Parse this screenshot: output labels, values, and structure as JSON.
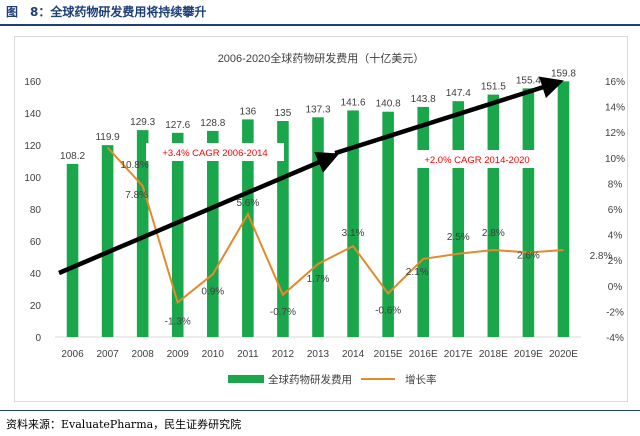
{
  "figure_title": "图　8：全球药物研发费用将持续攀升",
  "source": "资料来源：EvaluatePharma，民生证券研究院",
  "colors": {
    "bar": "#1aa64b",
    "line": "#e38a2b",
    "arrow": "#000000",
    "annotation_text": "#ff0000",
    "header": "#1f3f7a"
  },
  "chart_data": {
    "type": "bar",
    "title": "2006-2020全球药物研发费用（十亿美元）",
    "categories": [
      "2006",
      "2007",
      "2008",
      "2009",
      "2010",
      "2011",
      "2012",
      "2013",
      "2014",
      "2015E",
      "2016E",
      "2017E",
      "2018E",
      "2019E",
      "2020E"
    ],
    "series": [
      {
        "name": "全球药物研发费用",
        "type": "bar",
        "axis": "left",
        "values": [
          108.2,
          119.9,
          129.3,
          127.6,
          128.8,
          136,
          135,
          137.3,
          141.6,
          140.8,
          143.8,
          147.4,
          151.5,
          155.4,
          159.8
        ],
        "labels": [
          "108.2",
          "119.9",
          "129.3",
          "127.6",
          "128.8",
          "136",
          "135",
          "137.3",
          "141.6",
          "140.8",
          "143.8",
          "147.4",
          "151.5",
          "155.4",
          "159.8"
        ]
      },
      {
        "name": "增长率",
        "type": "line",
        "axis": "right",
        "values": [
          null,
          10.8,
          7.8,
          -1.3,
          0.9,
          5.6,
          -0.7,
          1.7,
          3.1,
          -0.6,
          2.1,
          2.5,
          2.8,
          2.6,
          2.8
        ],
        "labels": [
          "",
          "10.8%",
          "7.8%",
          "-1.3%",
          "0.9%",
          "5.6%",
          "-0.7%",
          "1.7%",
          "3.1%",
          "-0.6%",
          "2.1%",
          "2.5%",
          "2.8%",
          "2.6%",
          "2.8%"
        ]
      }
    ],
    "y_left": {
      "min": 0,
      "max": 160,
      "ticks": [
        0,
        20,
        40,
        60,
        80,
        100,
        120,
        140,
        160
      ]
    },
    "y_right": {
      "min": -4,
      "max": 16,
      "ticks": [
        "-4%",
        "-2%",
        "0%",
        "2%",
        "4%",
        "6%",
        "8%",
        "10%",
        "12%",
        "14%",
        "16%"
      ]
    },
    "grid": false,
    "legend_position": "bottom",
    "annotations": [
      {
        "text": "+3.4% CAGR 2006-2014",
        "from_category": "2006",
        "to_category": "2014",
        "from_value": 40,
        "to_value": 113
      },
      {
        "text": "+2.0% CAGR 2014-2020",
        "from_category": "2014",
        "to_category": "2020E",
        "from_value": 113,
        "to_value": 159
      }
    ]
  }
}
